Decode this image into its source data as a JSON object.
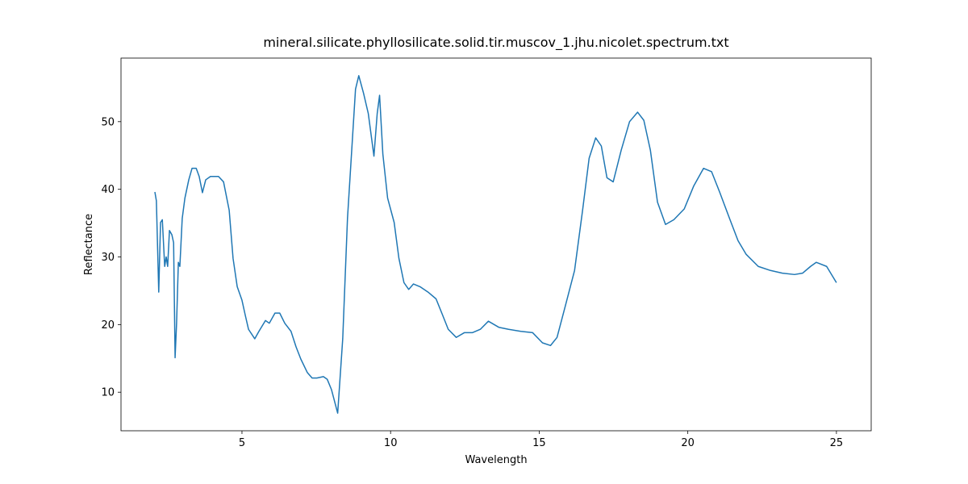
{
  "chart_data": {
    "type": "line",
    "title": "mineral.silicate.phyllosilicate.solid.tir.muscov_1.jhu.nicolet.spectrum.txt",
    "x_label": "Wavelength",
    "y_label": "Reflectance",
    "color": "#1f77b4",
    "x": [
      2.07,
      2.12,
      2.2,
      2.26,
      2.32,
      2.4,
      2.45,
      2.5,
      2.56,
      2.64,
      2.7,
      2.75,
      2.8,
      2.86,
      2.91,
      2.99,
      3.08,
      3.21,
      3.32,
      3.46,
      3.56,
      3.67,
      3.78,
      3.94,
      4.21,
      4.38,
      4.57,
      4.7,
      4.84,
      5.0,
      5.11,
      5.22,
      5.43,
      5.57,
      5.79,
      5.92,
      6.11,
      6.27,
      6.44,
      6.65,
      6.82,
      6.98,
      7.2,
      7.36,
      7.52,
      7.74,
      7.87,
      8.01,
      8.22,
      8.39,
      8.55,
      8.71,
      8.82,
      8.93,
      9.09,
      9.25,
      9.44,
      9.55,
      9.63,
      9.74,
      9.9,
      10.12,
      10.28,
      10.45,
      10.61,
      10.77,
      10.99,
      11.26,
      11.53,
      11.75,
      11.94,
      12.21,
      12.48,
      12.75,
      13.02,
      13.29,
      13.64,
      13.97,
      14.38,
      14.78,
      15.11,
      15.38,
      15.6,
      15.87,
      16.19,
      16.46,
      16.68,
      16.9,
      17.09,
      17.28,
      17.49,
      17.76,
      18.04,
      18.31,
      18.52,
      18.74,
      18.98,
      19.25,
      19.53,
      19.88,
      20.2,
      20.53,
      20.8,
      21.07,
      21.42,
      21.69,
      21.96,
      22.37,
      22.78,
      23.18,
      23.59,
      23.86,
      24.13,
      24.32,
      24.67,
      25.0
    ],
    "values": [
      39.6,
      38.3,
      24.8,
      35.1,
      35.5,
      28.6,
      30,
      28.6,
      33.9,
      33.3,
      32.1,
      15.1,
      20.2,
      29.2,
      28.6,
      35.7,
      38.7,
      41.4,
      43.1,
      43.1,
      41.9,
      39.5,
      41.4,
      41.9,
      41.9,
      41.1,
      36.9,
      29.8,
      25.6,
      23.6,
      21.4,
      19.3,
      17.9,
      19,
      20.6,
      20.2,
      21.7,
      21.7,
      20.2,
      19,
      16.7,
      14.9,
      12.9,
      12.1,
      12.1,
      12.3,
      11.9,
      10.4,
      6.9,
      17.9,
      35.7,
      47,
      54.8,
      56.8,
      54.2,
      51.2,
      44.9,
      51.2,
      53.9,
      45.2,
      38.7,
      35.1,
      29.8,
      26.2,
      25.2,
      26,
      25.6,
      24.8,
      23.8,
      21.4,
      19.3,
      18.1,
      18.8,
      18.8,
      19.3,
      20.5,
      19.6,
      19.3,
      19,
      18.8,
      17.3,
      16.9,
      18.1,
      22.6,
      28,
      36.9,
      44.6,
      47.6,
      46.4,
      41.7,
      41.1,
      45.8,
      50,
      51.4,
      50.2,
      45.8,
      38.1,
      34.8,
      35.5,
      37.1,
      40.5,
      43.1,
      42.6,
      39.6,
      35.5,
      32.4,
      30.4,
      28.6,
      28,
      27.6,
      27.4,
      27.6,
      28.6,
      29.2,
      28.6,
      26.2
    ],
    "xlim": [
      0.93,
      26.17
    ],
    "xticks": [
      5,
      10,
      15,
      20,
      25
    ],
    "ylim": [
      4.3,
      59.4
    ],
    "yticks": [
      10,
      20,
      30,
      40,
      50
    ]
  }
}
